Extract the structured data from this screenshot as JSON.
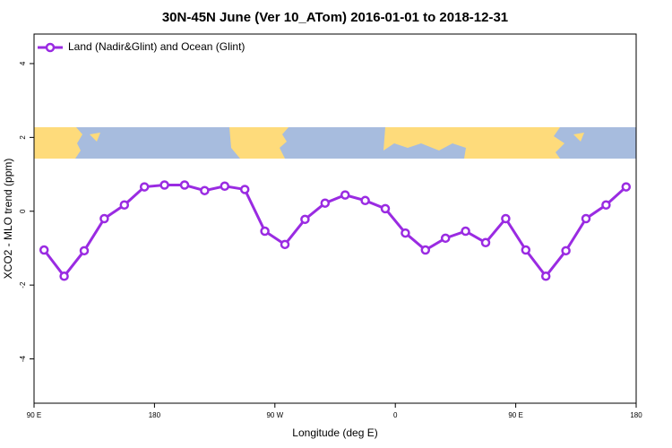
{
  "chart_data": {
    "type": "line",
    "title": "30N-45N June (Ver 10_ATom)   2016-01-01 to 2018-12-31",
    "xlabel": "Longitude (deg E)",
    "ylabel": "XCO2 - MLO trend (ppm)",
    "x": [
      97.5,
      112.5,
      127.5,
      142.5,
      157.5,
      172.5,
      187.5,
      202.5,
      217.5,
      232.5,
      247.5,
      262.5,
      277.5,
      292.5,
      307.5,
      322.5,
      337.5,
      352.5,
      367.5,
      382.5,
      397.5,
      412.5,
      427.5,
      442.5,
      457.5,
      472.5,
      487.5,
      502.5,
      517.5,
      532.5
    ],
    "series": [
      {
        "name": "Land (Nadir&Glint) and Ocean (Glint)",
        "color": "#9a2be2",
        "values": [
          -1.05,
          -1.76,
          -1.07,
          -0.2,
          0.17,
          0.66,
          0.71,
          0.71,
          0.56,
          0.68,
          0.59,
          -0.54,
          -0.9,
          -0.22,
          0.22,
          0.44,
          0.29,
          0.07,
          -0.59,
          -1.05,
          -0.73,
          -0.54,
          -0.85,
          -0.2,
          -1.05,
          -1.76,
          -1.07,
          -0.2,
          0.17,
          0.66
        ]
      }
    ],
    "xlim": [
      90,
      540
    ],
    "xticks": [
      {
        "value": 90,
        "label": "90 E"
      },
      180,
      {
        "value": 270,
        "label": "90 W"
      },
      {
        "value": 360,
        "label": "0"
      },
      {
        "value": 450,
        "label": "90 E"
      },
      {
        "value": 540,
        "label": "180"
      }
    ],
    "ylim": [
      -5.2,
      4.8
    ],
    "yticks": [
      -4,
      -2,
      0,
      2,
      4
    ],
    "legend": "top-left"
  }
}
